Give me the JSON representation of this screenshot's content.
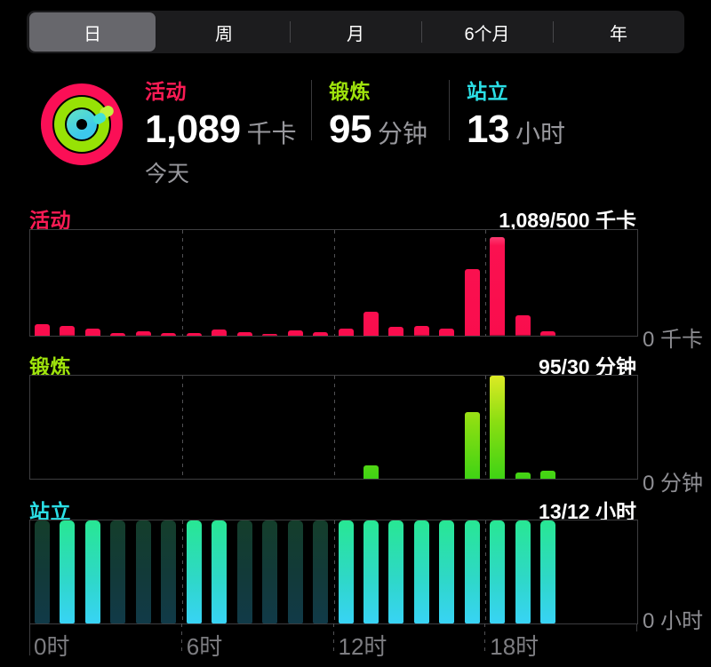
{
  "segmented_control": {
    "items": [
      {
        "label": "日",
        "selected": true
      },
      {
        "label": "周",
        "selected": false
      },
      {
        "label": "月",
        "selected": false
      },
      {
        "label": "6个月",
        "selected": false
      },
      {
        "label": "年",
        "selected": false
      }
    ]
  },
  "summary": {
    "date_label": "今天",
    "metrics": [
      {
        "name": "activity",
        "label": "活动",
        "value": "1,089",
        "unit": "千卡",
        "color": "#fb1b54"
      },
      {
        "name": "exercise",
        "label": "锻炼",
        "value": "95",
        "unit": "分钟",
        "color": "#9fe30c"
      },
      {
        "name": "stand",
        "label": "站立",
        "value": "13",
        "unit": "小时",
        "color": "#2bdfe6"
      }
    ]
  },
  "colors": {
    "activity_bar": "#fa1150",
    "exercise_bar_top": "#dcea24",
    "exercise_bar_bottom": "#3fd314",
    "stand_bar_top": "#28e793",
    "stand_bar_bottom": "#38d3f5",
    "stand_bar_dim": "#123a3a",
    "grid": "#515154",
    "axis_text": "#7d7d81"
  },
  "x_axis_labels": [
    "0时",
    "6时",
    "12时",
    "18时"
  ],
  "chart_data": [
    {
      "type": "bar",
      "id": "activity",
      "title": "活动",
      "goal_label": "1,089/500 千卡",
      "zero_label": "0 千卡",
      "x_unit": "hour_of_day_0_to_23",
      "y_note": "pct = bar height as % of plot height; only 0 axis labeled",
      "bars": [
        {
          "hour": 0,
          "pct": 11
        },
        {
          "hour": 1,
          "pct": 9
        },
        {
          "hour": 2,
          "pct": 7
        },
        {
          "hour": 3,
          "pct": 2.5
        },
        {
          "hour": 4,
          "pct": 4
        },
        {
          "hour": 5,
          "pct": 2.5
        },
        {
          "hour": 6,
          "pct": 2.5
        },
        {
          "hour": 7,
          "pct": 6
        },
        {
          "hour": 8,
          "pct": 3.5
        },
        {
          "hour": 9,
          "pct": 1.5
        },
        {
          "hour": 10,
          "pct": 5
        },
        {
          "hour": 11,
          "pct": 3.5
        },
        {
          "hour": 12,
          "pct": 7
        },
        {
          "hour": 13,
          "pct": 23
        },
        {
          "hour": 14,
          "pct": 8.5
        },
        {
          "hour": 15,
          "pct": 9
        },
        {
          "hour": 16,
          "pct": 7
        },
        {
          "hour": 17,
          "pct": 63
        },
        {
          "hour": 18,
          "pct": 93
        },
        {
          "hour": 19,
          "pct": 19
        },
        {
          "hour": 20,
          "pct": 4
        }
      ]
    },
    {
      "type": "bar",
      "id": "exercise",
      "title": "锻炼",
      "goal_label": "95/30 分钟",
      "zero_label": "0 分钟",
      "x_unit": "hour_of_day_0_to_23",
      "bars": [
        {
          "hour": 13,
          "pct": 13
        },
        {
          "hour": 17,
          "pct": 65
        },
        {
          "hour": 18,
          "pct": 100
        },
        {
          "hour": 19,
          "pct": 6
        },
        {
          "hour": 20,
          "pct": 8
        }
      ]
    },
    {
      "type": "bar",
      "id": "stand",
      "title": "站立",
      "goal_label": "13/12 小时",
      "zero_label": "0 小时",
      "x_unit": "hour_of_day_0_to_23",
      "y_note": "full-height bars; bright = stood hour, dim = idle hour; hours 21-23 empty (future)",
      "bars": [
        {
          "hour": 0,
          "pct": 100,
          "state": "dim"
        },
        {
          "hour": 1,
          "pct": 100,
          "state": "bright"
        },
        {
          "hour": 2,
          "pct": 100,
          "state": "bright"
        },
        {
          "hour": 3,
          "pct": 100,
          "state": "dim"
        },
        {
          "hour": 4,
          "pct": 100,
          "state": "dim"
        },
        {
          "hour": 5,
          "pct": 100,
          "state": "dim"
        },
        {
          "hour": 6,
          "pct": 100,
          "state": "bright"
        },
        {
          "hour": 7,
          "pct": 100,
          "state": "bright"
        },
        {
          "hour": 8,
          "pct": 100,
          "state": "dim"
        },
        {
          "hour": 9,
          "pct": 100,
          "state": "dim"
        },
        {
          "hour": 10,
          "pct": 100,
          "state": "dim"
        },
        {
          "hour": 11,
          "pct": 100,
          "state": "dim"
        },
        {
          "hour": 12,
          "pct": 100,
          "state": "bright"
        },
        {
          "hour": 13,
          "pct": 100,
          "state": "bright"
        },
        {
          "hour": 14,
          "pct": 100,
          "state": "bright"
        },
        {
          "hour": 15,
          "pct": 100,
          "state": "bright"
        },
        {
          "hour": 16,
          "pct": 100,
          "state": "bright"
        },
        {
          "hour": 17,
          "pct": 100,
          "state": "bright"
        },
        {
          "hour": 18,
          "pct": 100,
          "state": "bright"
        },
        {
          "hour": 19,
          "pct": 100,
          "state": "bright"
        },
        {
          "hour": 20,
          "pct": 100,
          "state": "bright"
        }
      ]
    }
  ]
}
